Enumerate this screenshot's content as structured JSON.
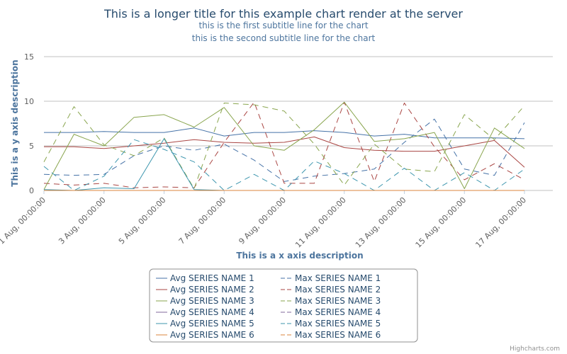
{
  "chart_data": {
    "type": "line",
    "title": "This is a longer title for this example chart render at the server",
    "subtitles": [
      "this is the first subtitle line for the chart",
      "this is the second subtitle line for the chart"
    ],
    "xlabel": "This is a x axis description",
    "ylabel": "This is a y axis description",
    "ylim": [
      0,
      15
    ],
    "yticks": [
      "0",
      "5",
      "10",
      "15"
    ],
    "x_tick_labels": [
      "1 Aug, 00:00:00",
      "3 Aug, 00:00:00",
      "5 Aug, 00:00:00",
      "7 Aug, 00:00:00",
      "9 Aug, 00:00:00",
      "11 Aug, 00:00:00",
      "13 Aug, 00:00:00",
      "15 Aug, 00:00:00",
      "17 Aug, 00:00:00"
    ],
    "x": [
      "1 Aug",
      "2 Aug",
      "3 Aug",
      "4 Aug",
      "5 Aug",
      "6 Aug",
      "7 Aug",
      "8 Aug",
      "9 Aug",
      "10 Aug",
      "11 Aug",
      "12 Aug",
      "13 Aug",
      "14 Aug",
      "15 Aug",
      "16 Aug",
      "17 Aug"
    ],
    "grid": true,
    "legend_position": "bottom-center",
    "series": [
      {
        "name": "Avg SERIES NAME 1",
        "color": "#4572a7",
        "dash": "solid",
        "values": [
          6.5,
          6.5,
          6.6,
          6.5,
          6.5,
          7.0,
          6.1,
          6.5,
          6.5,
          6.7,
          6.5,
          6.1,
          6.3,
          5.9,
          5.9,
          5.9,
          5.8
        ]
      },
      {
        "name": "Max SERIES NAME 1",
        "color": "#4572a7",
        "dash": "dashed",
        "values": [
          1.8,
          1.7,
          1.8,
          3.9,
          5.0,
          4.5,
          5.2,
          3.4,
          1.0,
          1.6,
          1.9,
          2.4,
          5.4,
          8.0,
          2.4,
          1.7,
          7.6
        ]
      },
      {
        "name": "Avg SERIES NAME 2",
        "color": "#aa4643",
        "dash": "solid",
        "values": [
          4.9,
          4.9,
          4.7,
          5.0,
          5.3,
          5.7,
          5.4,
          5.3,
          5.4,
          6.0,
          4.8,
          4.5,
          4.4,
          4.4,
          5.0,
          5.6,
          2.6
        ]
      },
      {
        "name": "Max SERIES NAME 2",
        "color": "#aa4643",
        "dash": "dashed",
        "values": [
          0.8,
          0.6,
          0.8,
          0.3,
          0.4,
          0.3,
          5.4,
          9.9,
          0.8,
          0.8,
          9.9,
          1.0,
          9.8,
          4.9,
          1.2,
          3.0,
          1.2
        ]
      },
      {
        "name": "Avg SERIES NAME 3",
        "color": "#89a54e",
        "dash": "solid",
        "values": [
          0.1,
          6.3,
          5.0,
          8.2,
          8.5,
          7.1,
          9.3,
          5.0,
          4.5,
          6.8,
          9.9,
          5.5,
          5.8,
          6.5,
          0.2,
          7.0,
          4.7
        ]
      },
      {
        "name": "Max SERIES NAME 3",
        "color": "#89a54e",
        "dash": "dashed",
        "values": [
          3.2,
          9.4,
          5.1,
          3.9,
          5.9,
          0.2,
          9.8,
          9.6,
          8.9,
          5.2,
          0.6,
          5.2,
          2.4,
          2.1,
          8.5,
          5.7,
          9.5
        ]
      },
      {
        "name": "Avg SERIES NAME 4",
        "color": "#80699b",
        "dash": "solid",
        "values": [
          0,
          0,
          0,
          0,
          0,
          0,
          0,
          0,
          0,
          0,
          0,
          0,
          0,
          0,
          0,
          0,
          0
        ]
      },
      {
        "name": "Max SERIES NAME 4",
        "color": "#80699b",
        "dash": "dashed",
        "values": [
          0,
          0,
          0,
          0,
          0,
          0,
          0,
          0,
          0,
          0,
          0,
          0,
          0,
          0,
          0,
          0,
          0
        ]
      },
      {
        "name": "Avg SERIES NAME 5",
        "color": "#3d96ae",
        "dash": "solid",
        "values": [
          0.1,
          0.0,
          0.3,
          0.2,
          5.8,
          0.1,
          0.0,
          0.0,
          0.0,
          0.0,
          0.0,
          0.0,
          0.0,
          0.0,
          0.0,
          0.0,
          0.0
        ]
      },
      {
        "name": "Max SERIES NAME 5",
        "color": "#3d96ae",
        "dash": "dashed",
        "values": [
          2.7,
          0.0,
          1.6,
          5.7,
          4.6,
          3.2,
          0.0,
          1.8,
          0.0,
          3.3,
          1.9,
          0.0,
          2.5,
          0.0,
          2.0,
          0.0,
          2.4
        ]
      },
      {
        "name": "Avg SERIES NAME 6",
        "color": "#db843d",
        "dash": "solid",
        "values": [
          0,
          0,
          0,
          0,
          0,
          0,
          0,
          0,
          0,
          0,
          0,
          0,
          0,
          0,
          0,
          0,
          0
        ]
      },
      {
        "name": "Max SERIES NAME 6",
        "color": "#db843d",
        "dash": "dashed",
        "values": [
          0,
          0,
          0,
          0,
          0,
          0,
          0,
          0,
          0,
          0,
          0,
          0,
          0,
          0,
          0,
          0,
          0
        ]
      }
    ]
  },
  "credit": "Highcharts.com"
}
